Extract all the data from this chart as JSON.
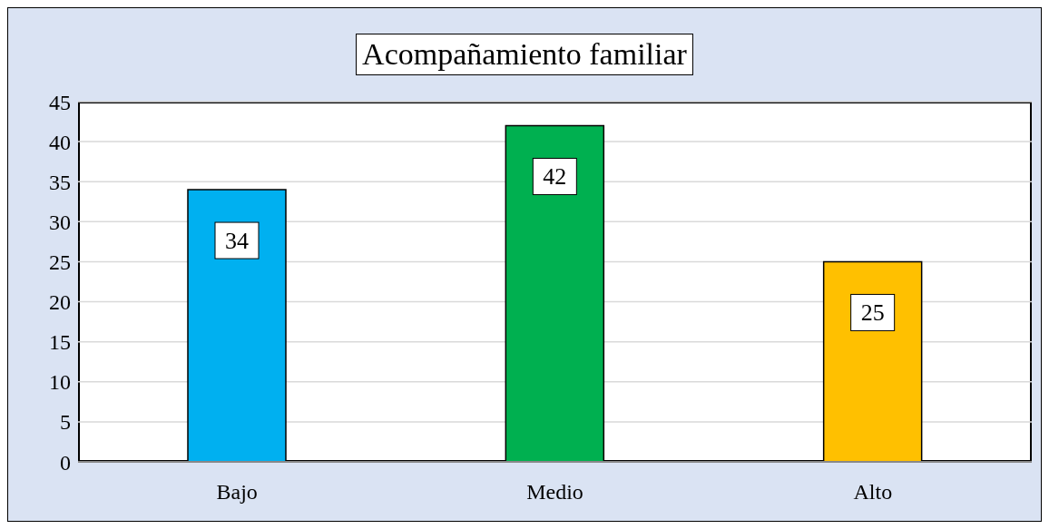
{
  "chart_data": {
    "type": "bar",
    "title": "Acompañamiento familiar",
    "categories": [
      "Bajo",
      "Medio",
      "Alto"
    ],
    "values": [
      34,
      42,
      25
    ],
    "colors": [
      "#00b0f0",
      "#00b050",
      "#ffc000"
    ],
    "ylim": [
      0,
      45
    ],
    "yticks": [
      0,
      5,
      10,
      15,
      20,
      25,
      30,
      35,
      40,
      45
    ],
    "grid": "y",
    "data_labels": true
  }
}
